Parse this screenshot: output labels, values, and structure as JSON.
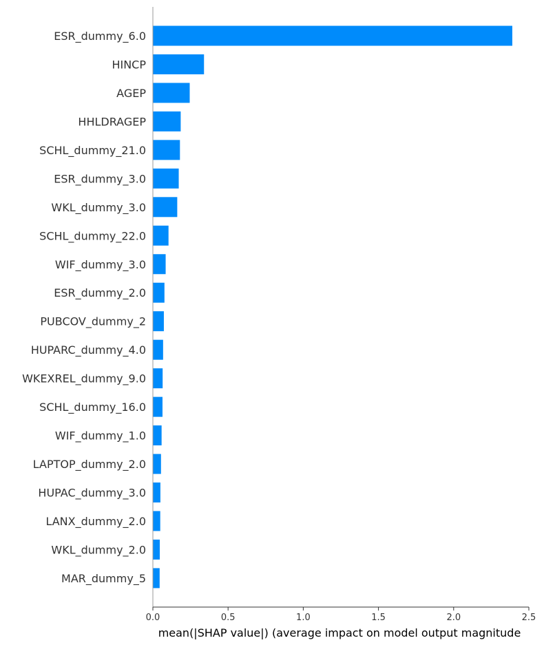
{
  "chart_data": {
    "type": "bar",
    "orientation": "horizontal",
    "title": "",
    "xlabel": "mean(|SHAP value|) (average impact on model output magnitude",
    "ylabel": "",
    "xlim": [
      0,
      2.5
    ],
    "xticks": [
      "0.0",
      "0.5",
      "1.0",
      "1.5",
      "2.0",
      "2.5"
    ],
    "grid": false,
    "bar_color": "#008bfb",
    "categories": [
      "ESR_dummy_6.0",
      "HINCP",
      "AGEP",
      "HHLDRAGEP",
      "SCHL_dummy_21.0",
      "ESR_dummy_3.0",
      "WKL_dummy_3.0",
      "SCHL_dummy_22.0",
      "WIF_dummy_3.0",
      "ESR_dummy_2.0",
      "PUBCOV_dummy_2",
      "HUPARC_dummy_4.0",
      "WKEXREL_dummy_9.0",
      "SCHL_dummy_16.0",
      "WIF_dummy_1.0",
      "LAPTOP_dummy_2.0",
      "HUPAC_dummy_3.0",
      "LANX_dummy_2.0",
      "WKL_dummy_2.0",
      "MAR_dummy_5"
    ],
    "values": [
      2.39,
      0.34,
      0.245,
      0.185,
      0.18,
      0.172,
      0.162,
      0.104,
      0.085,
      0.077,
      0.073,
      0.068,
      0.065,
      0.064,
      0.058,
      0.054,
      0.05,
      0.049,
      0.046,
      0.045
    ]
  }
}
